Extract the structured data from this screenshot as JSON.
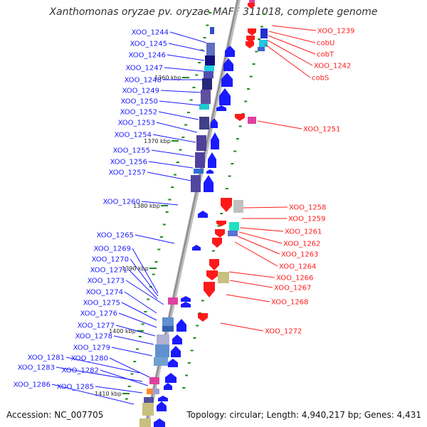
{
  "title": "Xanthomonas oryzae pv. oryzae MAFF 311018, complete genome",
  "footer": {
    "accession": "Accession: NC_007705",
    "summary": "Topology: circular; Length: 4,940,217 bp; Genes: 4,431"
  },
  "colors": {
    "forward_gene": "#1a1aff",
    "reverse_gene": "#ff1a1a",
    "backbone": "#9a9a9a",
    "tick": "#1a8a1a"
  },
  "kbp_ticks": [
    {
      "label": "1360 kbp"
    },
    {
      "label": "1370 kbp"
    },
    {
      "label": "1380 kbp"
    },
    {
      "label": "1390 kbp"
    },
    {
      "label": "1400 kbp"
    },
    {
      "label": "1410 kbp"
    }
  ],
  "forward_labels": [
    "XOO_1244",
    "XOO_1245",
    "XOO_1246",
    "XOO_1247",
    "XOO_1248",
    "XOO_1249",
    "XOO_1250",
    "XOO_1252",
    "XOO_1253",
    "XOO_1254",
    "XOO_1255",
    "XOO_1256",
    "XOO_1257",
    "XOO_1260",
    "XOO_1265",
    "XOO_1269",
    "XOO_1270",
    "XOO_1271",
    "XOO_1273",
    "XOO_1274",
    "XOO_1275",
    "XOO_1276",
    "XOO_1277",
    "XOO_1278",
    "XOO_1279",
    "XOO_1281",
    "XOO_1280",
    "XOO_1283",
    "XOO_1282",
    "XOO_1286",
    "XOO_1285"
  ],
  "reverse_labels": [
    "XOO_1239",
    "cobU",
    "cobT",
    "XOO_1242",
    "cobS",
    "XOO_1251",
    "XOO_1258",
    "XOO_1259",
    "XOO_1261",
    "XOO_1262",
    "XOO_1263",
    "XOO_1264",
    "XOO_1266",
    "XOO_1267",
    "XOO_1268",
    "XOO_1272"
  ]
}
